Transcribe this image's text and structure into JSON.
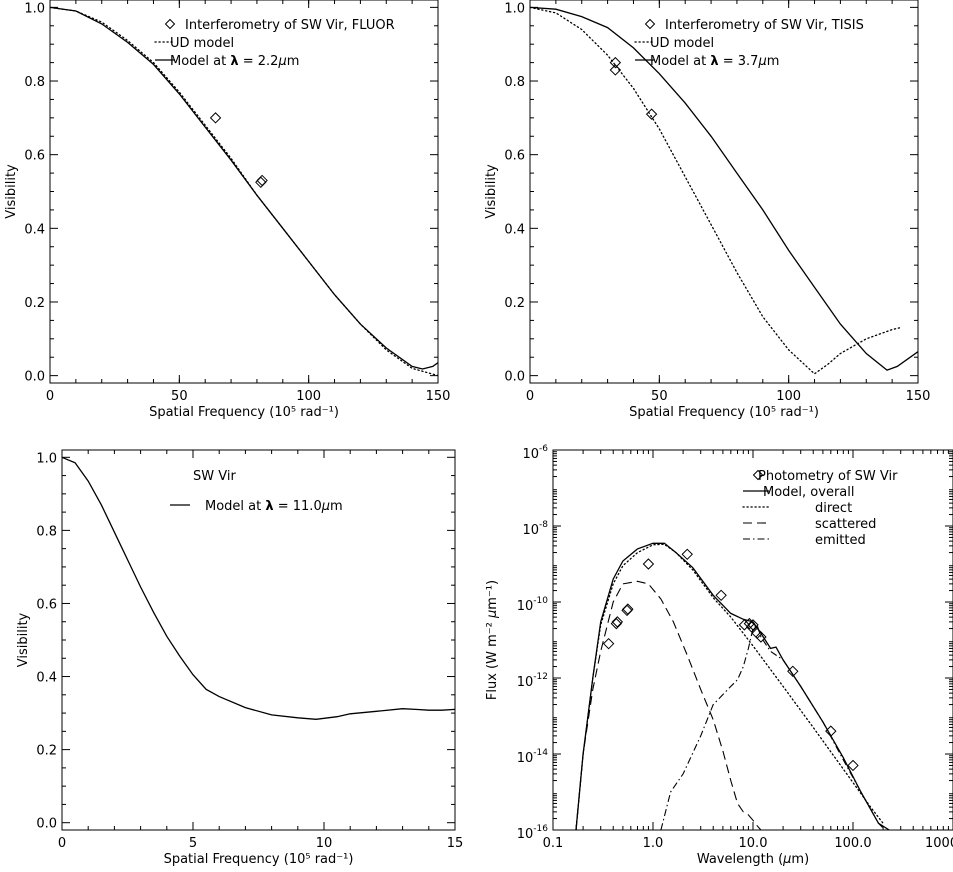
{
  "chart_data": [
    {
      "type": "line",
      "xlabel": "Spatial Frequency (10⁵ rad⁻¹)",
      "ylabel": "Visibility",
      "xlim": [
        0,
        150
      ],
      "ylim": [
        -0.02,
        1.02
      ],
      "xticks": [
        0,
        50,
        100,
        150
      ],
      "xtick_labels": [
        "0",
        "50",
        "100",
        "150"
      ],
      "yticks": [
        0.0,
        0.2,
        0.4,
        0.6,
        0.8,
        1.0
      ],
      "ytick_labels": [
        "0.0",
        "0.2",
        "0.4",
        "0.6",
        "0.8",
        "1.0"
      ],
      "legend_position": "top-right",
      "series": [
        {
          "name": "Interferometry of SW Vir, FLUOR",
          "style": "diamond",
          "x": [
            64,
            81.5,
            82
          ],
          "y": [
            0.7,
            0.525,
            0.53
          ]
        },
        {
          "name": "UD model",
          "style": "dotted",
          "x": [
            0,
            10,
            20,
            30,
            40,
            50,
            60,
            70,
            80,
            90,
            100,
            110,
            120,
            130,
            140,
            145,
            150
          ],
          "y": [
            1.0,
            0.99,
            0.96,
            0.91,
            0.85,
            0.77,
            0.68,
            0.59,
            0.49,
            0.4,
            0.31,
            0.22,
            0.14,
            0.07,
            0.02,
            0.01,
            0.0
          ]
        },
        {
          "name": "Model at λ = 2.2μm",
          "style": "solid",
          "x": [
            0,
            10,
            20,
            30,
            40,
            50,
            60,
            70,
            80,
            90,
            100,
            110,
            120,
            130,
            140,
            144,
            148,
            150
          ],
          "y": [
            1.0,
            0.99,
            0.955,
            0.905,
            0.845,
            0.765,
            0.675,
            0.585,
            0.49,
            0.4,
            0.31,
            0.22,
            0.14,
            0.075,
            0.025,
            0.018,
            0.025,
            0.035
          ]
        }
      ]
    },
    {
      "type": "line",
      "xlabel": "Spatial Frequency (10⁵ rad⁻¹)",
      "ylabel": "Visibility",
      "xlim": [
        0,
        150
      ],
      "ylim": [
        -0.02,
        1.02
      ],
      "xticks": [
        0,
        50,
        100,
        150
      ],
      "xtick_labels": [
        "0",
        "50",
        "100",
        "150"
      ],
      "yticks": [
        0.0,
        0.2,
        0.4,
        0.6,
        0.8,
        1.0
      ],
      "ytick_labels": [
        "0.0",
        "0.2",
        "0.4",
        "0.6",
        "0.8",
        "1.0"
      ],
      "legend_position": "top-right",
      "series": [
        {
          "name": "Interferometry of SW Vir, TISIS",
          "style": "diamond",
          "x": [
            33,
            33,
            47
          ],
          "y": [
            0.85,
            0.83,
            0.71
          ]
        },
        {
          "name": "UD model",
          "style": "dotted",
          "x": [
            0,
            10,
            20,
            30,
            40,
            50,
            60,
            70,
            80,
            90,
            100,
            110,
            115,
            120,
            130,
            140,
            143
          ],
          "y": [
            1.0,
            0.985,
            0.94,
            0.87,
            0.78,
            0.67,
            0.54,
            0.41,
            0.28,
            0.16,
            0.07,
            0.005,
            0.03,
            0.06,
            0.1,
            0.125,
            0.13
          ]
        },
        {
          "name": "Model at λ = 3.7μm",
          "style": "solid",
          "x": [
            0,
            10,
            20,
            30,
            40,
            50,
            60,
            70,
            80,
            90,
            100,
            110,
            120,
            130,
            138,
            142,
            150
          ],
          "y": [
            1.0,
            0.995,
            0.975,
            0.945,
            0.89,
            0.82,
            0.74,
            0.65,
            0.55,
            0.45,
            0.34,
            0.24,
            0.14,
            0.06,
            0.015,
            0.025,
            0.065
          ]
        }
      ]
    },
    {
      "type": "line",
      "xlabel": "Spatial Frequency (10⁵ rad⁻¹)",
      "ylabel": "Visibility",
      "xlim": [
        0,
        15
      ],
      "ylim": [
        -0.02,
        1.02
      ],
      "xticks": [
        0,
        5,
        10,
        15
      ],
      "xtick_labels": [
        "0",
        "5",
        "10",
        "15"
      ],
      "yticks": [
        0.0,
        0.2,
        0.4,
        0.6,
        0.8,
        1.0
      ],
      "ytick_labels": [
        "0.0",
        "0.2",
        "0.4",
        "0.6",
        "0.8",
        "1.0"
      ],
      "annotation": "SW Vir",
      "legend_position": "top-right",
      "series": [
        {
          "name": "Model at λ = 11.0μm",
          "style": "solid",
          "x": [
            0,
            0.5,
            1,
            1.5,
            2,
            2.5,
            3,
            3.5,
            4,
            4.5,
            5,
            5.5,
            6,
            7,
            8,
            9,
            9.7,
            10.5,
            11,
            12,
            13,
            13.5,
            14,
            14.5,
            15
          ],
          "y": [
            1.0,
            0.985,
            0.935,
            0.87,
            0.795,
            0.72,
            0.645,
            0.575,
            0.51,
            0.455,
            0.405,
            0.365,
            0.345,
            0.315,
            0.295,
            0.287,
            0.283,
            0.29,
            0.298,
            0.305,
            0.312,
            0.31,
            0.308,
            0.308,
            0.31
          ]
        }
      ]
    },
    {
      "type": "line",
      "xlabel": "Wavelength (μm)",
      "ylabel": "Flux (W m⁻² μm⁻¹)",
      "xscale": "log",
      "yscale": "log",
      "xlim": [
        0.1,
        1000
      ],
      "ylim": [
        1e-16,
        1e-06
      ],
      "xticks": [
        0.1,
        1.0,
        10.0,
        100.0,
        1000.0
      ],
      "xtick_labels": [
        "0.1",
        "1.0",
        "10.0",
        "100.0",
        "1000.0"
      ],
      "yticks": [
        1e-16,
        1e-14,
        1e-12,
        1e-10,
        1e-08,
        1e-06
      ],
      "ytick_labels": [
        {
          "base": "10",
          "exp": "-16"
        },
        {
          "base": "10",
          "exp": "-14"
        },
        {
          "base": "10",
          "exp": "-12"
        },
        {
          "base": "10",
          "exp": "-10"
        },
        {
          "base": "10",
          "exp": "-8"
        },
        {
          "base": "10",
          "exp": "-6"
        }
      ],
      "legend_position": "top-right",
      "series": [
        {
          "name": "Photometry of SW Vir",
          "style": "diamond",
          "x": [
            0.36,
            0.44,
            0.43,
            0.55,
            0.56,
            0.9,
            2.2,
            4.8,
            8.2,
            9.2,
            9.7,
            10.0,
            11.0,
            12.0,
            25.0,
            60.0,
            100.0
          ],
          "y": [
            8e-12,
            3e-11,
            2.7e-11,
            6e-11,
            6.5e-11,
            1e-09,
            1.8e-09,
            1.5e-10,
            2.5e-11,
            2.7e-11,
            2.2e-11,
            2.5e-11,
            1.5e-11,
            1.2e-11,
            1.5e-12,
            4e-14,
            5e-15
          ]
        },
        {
          "name": "Model, overall",
          "style": "solid",
          "x": [
            0.17,
            0.2,
            0.25,
            0.3,
            0.4,
            0.5,
            0.7,
            1.0,
            1.3,
            1.7,
            2.5,
            4.0,
            6.0,
            8.0,
            10.0,
            12.0,
            15.0,
            17.0,
            20.0,
            30.0,
            50.0,
            80.0,
            120.0,
            180.0,
            230.0
          ],
          "y": [
            1e-16,
            1e-14,
            1e-12,
            3e-11,
            4e-10,
            1.2e-09,
            2.5e-09,
            3.5e-09,
            3.5e-09,
            2e-09,
            8e-10,
            1.5e-10,
            5e-11,
            3.5e-11,
            3e-11,
            1.5e-11,
            6e-12,
            6.5e-12,
            3e-12,
            6e-13,
            7e-14,
            8e-15,
            1e-15,
            1.5e-16,
            1e-16
          ]
        },
        {
          "name": "direct",
          "style": "dotted",
          "x": [
            0.17,
            0.2,
            0.25,
            0.3,
            0.4,
            0.5,
            0.7,
            1.0,
            1.3,
            1.7,
            2.5,
            4.0,
            6.0,
            10.0,
            20.0,
            40.0,
            80.0,
            150.0,
            200.0
          ],
          "y": [
            1e-16,
            1e-14,
            1e-12,
            2.5e-11,
            3e-10,
            9e-10,
            2e-09,
            3.2e-09,
            3.3e-09,
            2e-09,
            7e-10,
            1.3e-10,
            4e-11,
            7e-12,
            6e-13,
            5e-14,
            4e-15,
            4e-16,
            1.5e-16
          ]
        },
        {
          "name": "scattered",
          "style": "dashed",
          "x": [
            0.17,
            0.2,
            0.25,
            0.3,
            0.4,
            0.5,
            0.7,
            0.9,
            1.2,
            1.6,
            2.2,
            3.0,
            4.0,
            5.0,
            6.0,
            7.0,
            8.0,
            9.0,
            10.0,
            11.0,
            12.0
          ],
          "y": [
            1e-16,
            1e-14,
            5e-13,
            5e-12,
            1e-10,
            3e-10,
            3.5e-10,
            3e-10,
            1.2e-10,
            3e-11,
            4e-12,
            5e-13,
            8e-14,
            1.2e-14,
            2e-15,
            5e-16,
            3e-16,
            2.5e-16,
            1.8e-16,
            1.3e-16,
            1e-16
          ]
        },
        {
          "name": "emitted",
          "style": "dashdot",
          "x": [
            1.2,
            1.5,
            2.0,
            3.0,
            4.0,
            6.0,
            7.0,
            8.0,
            9.0,
            10.0,
            11.0,
            12.0,
            15.0,
            20.0,
            30.0,
            50.0,
            80.0,
            120.0,
            180.0,
            210.0
          ],
          "y": [
            1e-16,
            1e-15,
            3e-15,
            3e-14,
            2e-13,
            6e-13,
            9e-13,
            2e-12,
            6e-12,
            2e-11,
            2.5e-11,
            1.2e-11,
            5e-12,
            3e-12,
            6e-13,
            7e-14,
            7e-15,
            1e-15,
            1.5e-16,
            1e-16
          ]
        }
      ]
    }
  ]
}
